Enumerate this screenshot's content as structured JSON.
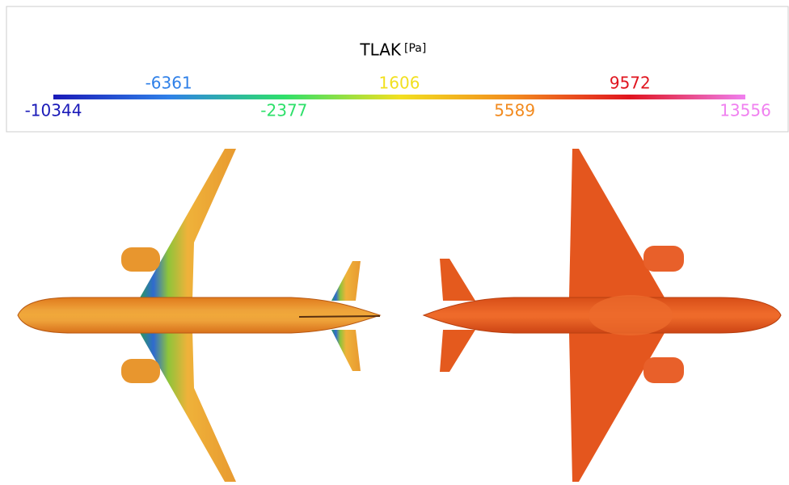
{
  "colorbar": {
    "title": "TLAK",
    "unit": "[Pa]",
    "ticks": [
      -10344,
      -6361,
      -2377,
      1606,
      5589,
      9572,
      13556
    ],
    "colors": [
      "#1a1ab8",
      "#2f80e8",
      "#2ee06a",
      "#f2e020",
      "#f28a1e",
      "#e0141e",
      "#f080f0"
    ]
  }
}
